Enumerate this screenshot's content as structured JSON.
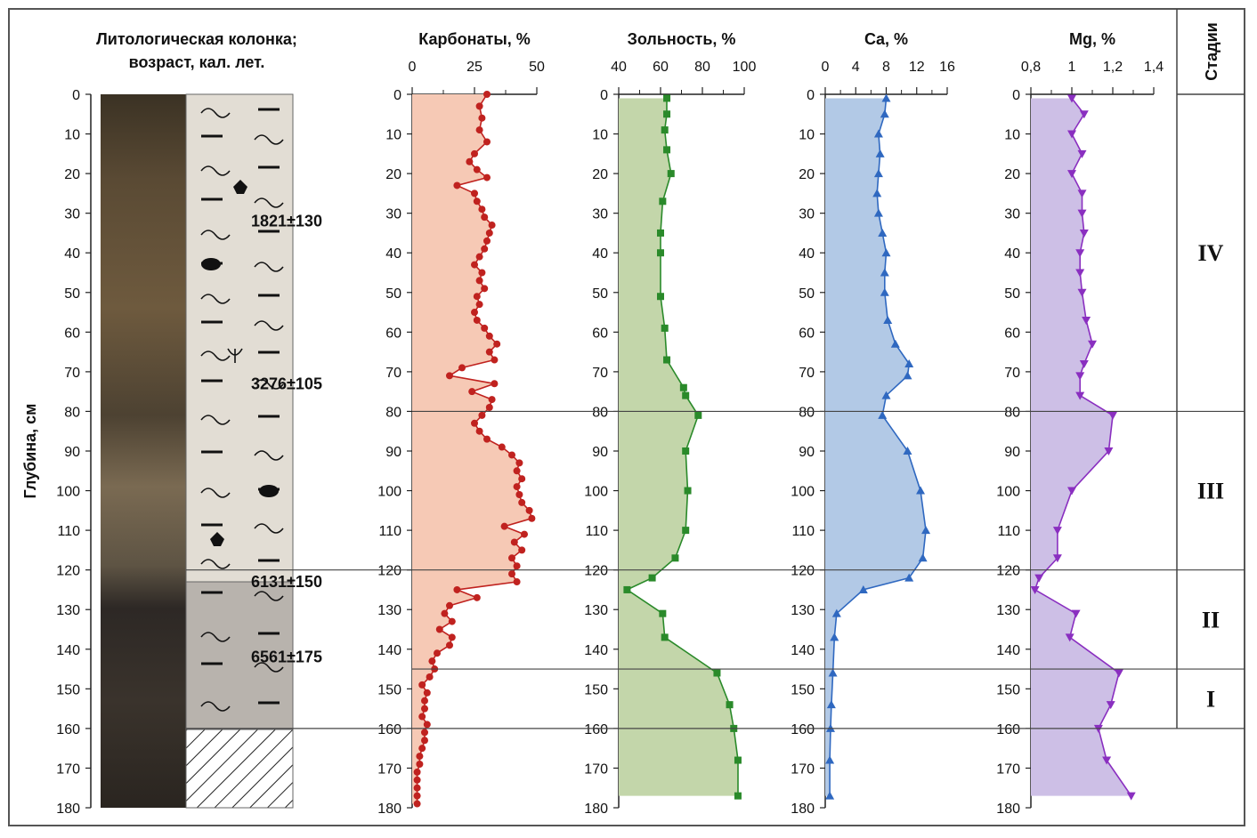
{
  "column": {
    "title_line1": "Литологическая колонка;",
    "title_line2": "возраст, кал. лет.",
    "dates": [
      {
        "label": "1821±130",
        "depth": 32
      },
      {
        "label": "3276±105",
        "depth": 73
      },
      {
        "label": "6131±150",
        "depth": 123
      },
      {
        "label": "6561±175",
        "depth": 142
      }
    ]
  },
  "depth_axis": {
    "label": "Глубина, см",
    "min": 0,
    "max": 180,
    "ticks": [
      0,
      10,
      20,
      30,
      40,
      50,
      60,
      70,
      80,
      90,
      100,
      110,
      120,
      130,
      140,
      150,
      160,
      170,
      180
    ]
  },
  "stages": {
    "header": "Стадии",
    "items": [
      {
        "label": "IV",
        "from": 0,
        "to": 80
      },
      {
        "label": "III",
        "from": 80,
        "to": 120
      },
      {
        "label": "II",
        "from": 120,
        "to": 145
      },
      {
        "label": "I",
        "from": 145,
        "to": 160
      }
    ]
  },
  "boundaries": [
    80,
    120,
    145,
    160
  ],
  "colors": {
    "carbonates": "#c0221f",
    "ash": "#2a8a2a",
    "ca": "#2f68c0",
    "mg": "#8a2fc0",
    "carb_fill": "#f6c9b5",
    "ash_fill": "#c3d6aa",
    "ca_fill": "#b2c9e6",
    "mg_fill": "#cdbfe6"
  },
  "chart_data": [
    {
      "type": "line",
      "title": "Карбонаты, %",
      "xlim": [
        0,
        50
      ],
      "x_ticks": [
        "0",
        "25",
        "50"
      ],
      "marker": "circle",
      "depth": [
        0,
        3,
        6,
        9,
        12,
        15,
        17,
        19,
        21,
        23,
        25,
        27,
        29,
        31,
        33,
        35,
        37,
        39,
        41,
        43,
        45,
        47,
        49,
        51,
        53,
        55,
        57,
        59,
        61,
        63,
        65,
        67,
        69,
        71,
        73,
        75,
        77,
        79,
        81,
        83,
        85,
        87,
        89,
        91,
        93,
        95,
        97,
        99,
        101,
        103,
        105,
        107,
        109,
        111,
        113,
        115,
        117,
        119,
        121,
        123,
        125,
        127,
        129,
        131,
        133,
        135,
        137,
        139,
        141,
        143,
        145,
        147,
        149,
        151,
        153,
        155,
        157,
        159,
        161,
        163,
        165,
        167,
        169,
        171,
        173,
        175,
        177,
        179
      ],
      "values": [
        30,
        27,
        28,
        27,
        30,
        25,
        23,
        26,
        30,
        18,
        25,
        26,
        28,
        29,
        32,
        31,
        30,
        29,
        27,
        25,
        28,
        27,
        29,
        26,
        27,
        25,
        26,
        29,
        31,
        34,
        31,
        33,
        20,
        15,
        33,
        24,
        32,
        31,
        28,
        25,
        27,
        30,
        36,
        40,
        43,
        42,
        44,
        42,
        43,
        44,
        47,
        48,
        37,
        45,
        41,
        44,
        40,
        42,
        40,
        42,
        18,
        26,
        15,
        13,
        16,
        11,
        16,
        15,
        10,
        8,
        9,
        7,
        4,
        6,
        5,
        5,
        4,
        6,
        5,
        5,
        4,
        3,
        3,
        2,
        2,
        2,
        2,
        2
      ],
      "fill": "#f6c9b5",
      "color": "#c0221f"
    },
    {
      "type": "line",
      "title": "Зольность, %",
      "xlim": [
        40,
        100
      ],
      "x_ticks": [
        "40",
        "60",
        "80",
        "100"
      ],
      "marker": "square",
      "depth": [
        1,
        5,
        9,
        14,
        20,
        27,
        35,
        40,
        51,
        59,
        67,
        74,
        76,
        81,
        90,
        100,
        110,
        117,
        122,
        125,
        131,
        137,
        146,
        154,
        160,
        168,
        177
      ],
      "values": [
        63,
        63,
        62,
        63,
        65,
        61,
        60,
        60,
        60,
        62,
        63,
        71,
        72,
        78,
        72,
        73,
        72,
        67,
        56,
        44,
        61,
        62,
        87,
        93,
        95,
        97,
        97
      ],
      "fill": "#c3d6aa",
      "color": "#2a8a2a"
    },
    {
      "type": "line",
      "title": "Ca, %",
      "xlim": [
        0,
        16
      ],
      "x_ticks": [
        "0",
        "4",
        "8",
        "12",
        "16"
      ],
      "marker": "triangle-up",
      "depth": [
        1,
        5,
        10,
        15,
        20,
        25,
        30,
        35,
        40,
        45,
        50,
        57,
        63,
        68,
        71,
        76,
        81,
        90,
        100,
        110,
        117,
        122,
        125,
        131,
        137,
        146,
        154,
        160,
        168,
        177
      ],
      "values": [
        8,
        7.8,
        7,
        7.2,
        7,
        6.8,
        7,
        7.5,
        8,
        7.8,
        7.8,
        8.2,
        9.2,
        11,
        10.8,
        8,
        7.5,
        10.8,
        12.5,
        13.2,
        12.8,
        11,
        5,
        1.5,
        1.2,
        1,
        0.8,
        0.7,
        0.6,
        0.6
      ],
      "fill": "#b2c9e6",
      "color": "#2f68c0"
    },
    {
      "type": "line",
      "title": "Mg, %",
      "xlim": [
        0.8,
        1.4
      ],
      "x_ticks": [
        "0,8",
        "1",
        "1,2",
        "1,4"
      ],
      "marker": "triangle-down",
      "depth": [
        1,
        5,
        10,
        15,
        20,
        25,
        30,
        35,
        40,
        45,
        50,
        57,
        63,
        68,
        71,
        76,
        81,
        90,
        100,
        110,
        117,
        122,
        125,
        131,
        137,
        146,
        154,
        160,
        168,
        177
      ],
      "values": [
        1,
        1.06,
        1,
        1.05,
        1,
        1.05,
        1.05,
        1.06,
        1.04,
        1.04,
        1.05,
        1.07,
        1.1,
        1.06,
        1.04,
        1.04,
        1.2,
        1.18,
        1,
        0.93,
        0.93,
        0.84,
        0.82,
        1.02,
        0.99,
        1.23,
        1.19,
        1.13,
        1.17,
        1.29
      ],
      "fill": "#cdbfe6",
      "color": "#8a2fc0"
    }
  ]
}
